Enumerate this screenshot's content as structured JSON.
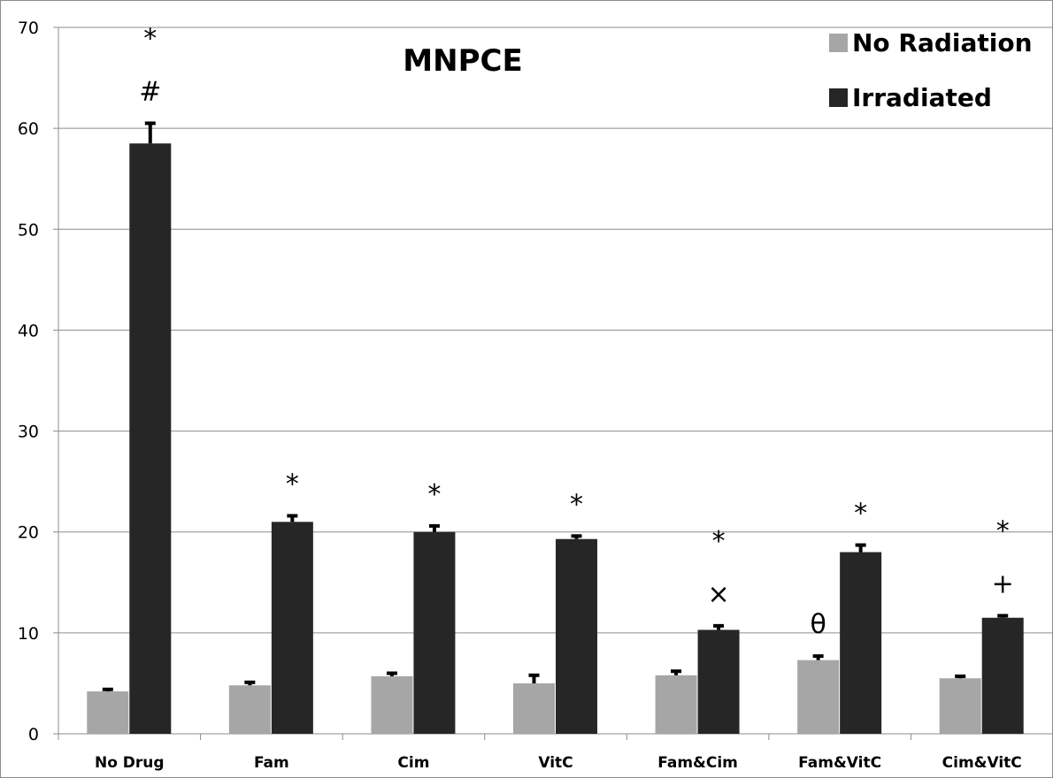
{
  "chart_data": {
    "type": "bar",
    "title": "MNPCE",
    "xlabel": "",
    "ylabel": "",
    "ylim": [
      0,
      70
    ],
    "yticks": [
      0,
      10,
      20,
      30,
      40,
      50,
      60,
      70
    ],
    "grid": true,
    "legend_position": "top-right",
    "categories": [
      "No Drug",
      "Fam",
      "Cim",
      "VitC",
      "Fam&Cim",
      "Fam&VitC",
      "Cim&VitC"
    ],
    "series": [
      {
        "name": "No Radiation",
        "color": "#a6a6a6",
        "values": [
          4.2,
          4.8,
          5.7,
          5.0,
          5.8,
          7.3,
          5.5
        ],
        "errors": [
          0.2,
          0.3,
          0.3,
          0.8,
          0.4,
          0.4,
          0.2
        ],
        "annotations": [
          "",
          "",
          "",
          "",
          "",
          "θ",
          ""
        ]
      },
      {
        "name": "Irradiated",
        "color": "#262626",
        "values": [
          58.5,
          21.0,
          20.0,
          19.3,
          10.3,
          18.0,
          11.5
        ],
        "errors": [
          2.0,
          0.6,
          0.6,
          0.3,
          0.4,
          0.7,
          0.2
        ],
        "annotations": [
          [
            "*",
            "#"
          ],
          [
            "*"
          ],
          [
            "*"
          ],
          [
            "*"
          ],
          [
            "*",
            "×"
          ],
          [
            "*"
          ],
          [
            "*",
            "+"
          ]
        ]
      }
    ]
  }
}
